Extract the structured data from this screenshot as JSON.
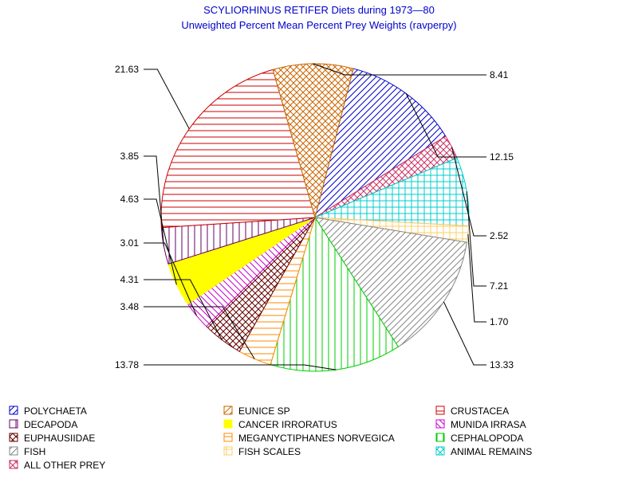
{
  "chart_data": {
    "type": "pie",
    "title": "SCYLIORHINUS RETIFER Diets during 1973—80",
    "subtitle": "Unweighted Percent Mean Percent Prey  Weights (ravperpy)",
    "slices": [
      {
        "name": "POLYCHAETA",
        "value": 12.15,
        "label": "12.15",
        "color": "#0000cc",
        "pattern": "diag-up"
      },
      {
        "name": "ALL OTHER PREY",
        "value": 2.52,
        "label": "2.52",
        "color": "#cc3366",
        "pattern": "crosshatch-diag"
      },
      {
        "name": "ANIMAL REMAINS",
        "value": 7.21,
        "label": "7.21",
        "color": "#00cccc",
        "pattern": "grid"
      },
      {
        "name": "FISH SCALES",
        "value": 1.7,
        "label": "1.70",
        "color": "#ffcc66",
        "pattern": "grid"
      },
      {
        "name": "FISH",
        "value": 13.33,
        "label": "13.33",
        "color": "#888888",
        "pattern": "diag-up"
      },
      {
        "name": "CEPHALOPODA",
        "value": 13.78,
        "label": "13.78",
        "color": "#00cc00",
        "pattern": "vertical"
      },
      {
        "name": "MEGANYCTIPHANES NORVEGICA",
        "value": 3.48,
        "label": "3.48",
        "color": "#ff8800",
        "pattern": "horizontal"
      },
      {
        "name": "EUPHAUSIIDAE",
        "value": 4.31,
        "label": "4.31",
        "color": "#660000",
        "pattern": "crosshatch-diag"
      },
      {
        "name": "MUNIDA IRRASA",
        "value": 3.01,
        "label": "3.01",
        "color": "#cc00cc",
        "pattern": "diag-down"
      },
      {
        "name": "CANCER IRRORATUS",
        "value": 4.63,
        "label": "4.63",
        "color": "#ffff00",
        "pattern": "solid"
      },
      {
        "name": "DECAPODA",
        "value": 3.85,
        "label": "3.85",
        "color": "#660066",
        "pattern": "vertical"
      },
      {
        "name": "CRUSTACEA",
        "value": 21.63,
        "label": "21.63",
        "color": "#cc0000",
        "pattern": "horizontal"
      },
      {
        "name": "EUNICE SP",
        "value": 8.41,
        "label": "8.41",
        "color": "#cc6600",
        "pattern": "crosshatch-diag"
      }
    ],
    "legend": {
      "placement": "bottom",
      "items": [
        {
          "name": "POLYCHAETA",
          "color": "#0000cc",
          "pattern": "diag-up"
        },
        {
          "name": "EUNICE SP",
          "color": "#cc6600",
          "pattern": "diag-up"
        },
        {
          "name": "CRUSTACEA",
          "color": "#cc0000",
          "pattern": "horizontal"
        },
        {
          "name": "DECAPODA",
          "color": "#660066",
          "pattern": "vertical"
        },
        {
          "name": "CANCER IRRORATUS",
          "color": "#ffff00",
          "pattern": "solid"
        },
        {
          "name": "MUNIDA IRRASA",
          "color": "#cc00cc",
          "pattern": "diag-down"
        },
        {
          "name": "EUPHAUSIIDAE",
          "color": "#660000",
          "pattern": "crosshatch-diag"
        },
        {
          "name": "MEGANYCTIPHANES NORVEGICA",
          "color": "#ff8800",
          "pattern": "horizontal"
        },
        {
          "name": "CEPHALOPODA",
          "color": "#00cc00",
          "pattern": "vertical"
        },
        {
          "name": "FISH",
          "color": "#888888",
          "pattern": "diag-up"
        },
        {
          "name": "FISH SCALES",
          "color": "#ffcc66",
          "pattern": "grid"
        },
        {
          "name": "ANIMAL REMAINS",
          "color": "#00cccc",
          "pattern": "crosshatch-diag"
        },
        {
          "name": "ALL OTHER PREY",
          "color": "#cc3366",
          "pattern": "crosshatch-diag"
        }
      ]
    }
  }
}
